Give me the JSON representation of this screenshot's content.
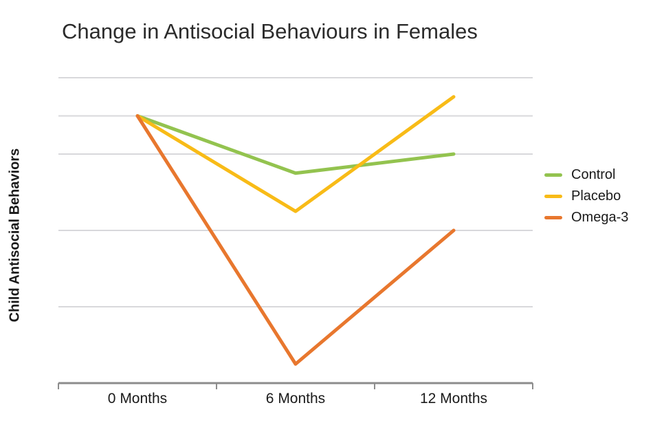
{
  "chart_data": {
    "type": "line",
    "title": "Change in Antisocial Behaviours in Females",
    "xlabel": "",
    "ylabel": "Child Antisocial Behaviors",
    "categories": [
      "0 Months",
      "6 Months",
      "12 Months"
    ],
    "series": [
      {
        "name": "Control",
        "color": "#93c34f",
        "values": [
          7,
          5.5,
          6
        ]
      },
      {
        "name": "Placebo",
        "color": "#f8bb17",
        "values": [
          7,
          4.5,
          7.5
        ]
      },
      {
        "name": "Omega-3",
        "color": "#e8772e",
        "values": [
          7,
          0.5,
          4
        ]
      }
    ],
    "ylim": [
      0,
      8
    ],
    "y_tick_labels_shown": false,
    "gridline_values": [
      8,
      7,
      6,
      4,
      2
    ],
    "grid": true,
    "legend_position": "right",
    "colors": {
      "gridline": "#d8d8db",
      "axis": "#8c8c8c",
      "title_text": "#2b2b2b",
      "label_text": "#1a1a1a"
    }
  }
}
